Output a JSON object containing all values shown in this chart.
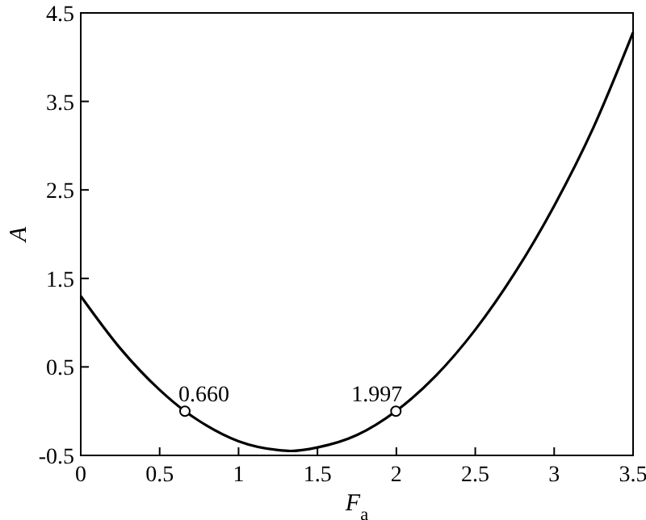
{
  "chart_data": {
    "type": "line",
    "xlabel": "F$_{a}$",
    "ylabel": "A",
    "xlim": [
      0,
      3.5
    ],
    "xticks": [
      0,
      0.5,
      1.0,
      1.5,
      2.0,
      2.5,
      3.0,
      3.5
    ],
    "ylim": [
      -0.5,
      4.5
    ],
    "yticks": [
      -0.5,
      0.5,
      1.5,
      2.5,
      3.5,
      4.5
    ],
    "grid": false,
    "annotations": [
      {
        "text": "0.660",
        "x": 0.66,
        "y": 0
      },
      {
        "text": "1.997",
        "x": 1.997,
        "y": 0
      }
    ],
    "series": [
      {
        "type": "line",
        "color": "#000000",
        "marker": "none",
        "x": [
          0,
          0.25,
          0.5,
          0.66,
          0.75,
          1.0,
          1.25,
          1.33,
          1.5,
          1.75,
          1.997,
          2.25,
          2.5,
          2.75,
          3.0,
          3.25,
          3.5
        ],
        "values": [
          1.3,
          0.71,
          0.24,
          0,
          -0.11,
          -0.34,
          -0.44,
          -0.45,
          -0.41,
          -0.27,
          0,
          0.4,
          0.92,
          1.56,
          2.32,
          3.21,
          4.28
        ]
      },
      {
        "type": "scatter",
        "color": "#000000",
        "marker": "circle",
        "x": [
          0.66,
          1.997
        ],
        "values": [
          0,
          0
        ]
      }
    ]
  }
}
